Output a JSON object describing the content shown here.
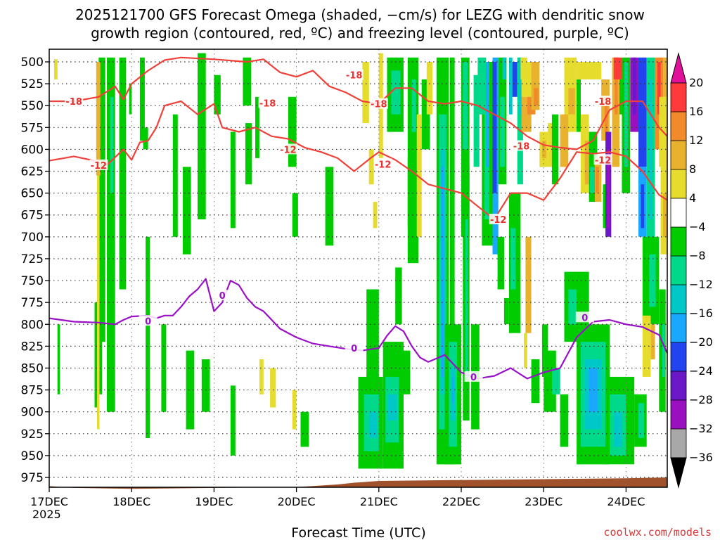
{
  "chart_data": {
    "type": "heatmap",
    "title_line1": "2025121700 GFS Forecast Omega (shaded, −cm/s) for LEZG with dendritic snow",
    "title_line2": "growth region (contoured, red, ºC) and freezing level (contoured, purple, ºC)",
    "xlabel": "Forecast Time (UTC)",
    "credit": "coolwx.com/models",
    "x_ticks": [
      "17DEC",
      "18DEC",
      "19DEC",
      "20DEC",
      "21DEC",
      "22DEC",
      "23DEC",
      "24DEC"
    ],
    "x_year": "2025",
    "x_range_days": [
      0,
      7.5
    ],
    "y_ticks": [
      500,
      525,
      550,
      575,
      600,
      625,
      650,
      675,
      700,
      725,
      750,
      775,
      800,
      825,
      850,
      875,
      900,
      925,
      950,
      975
    ],
    "y_range_hpa": [
      490,
      995
    ],
    "colorbar": {
      "labels": [
        "20",
        "16",
        "12",
        "8",
        "4",
        "−4",
        "−8",
        "−12",
        "−16",
        "−20",
        "−24",
        "−28",
        "−32",
        "−36"
      ],
      "colors": [
        "#ff3a3a",
        "#f08a2a",
        "#e8b22e",
        "#e6dc2e",
        "#ffffff",
        "#00cc00",
        "#00d98a",
        "#00c8c8",
        "#1aa8ff",
        "#2244ee",
        "#6a18c8",
        "#9a10c0",
        "#a8a8a8"
      ],
      "top_arrow_color": "#e0109a",
      "bottom_arrow_color": "#000000"
    },
    "contours_red_dgz": [
      {
        "label": "-18",
        "points": [
          [
            0,
            545
          ],
          [
            0.3,
            545
          ],
          [
            0.6,
            540
          ],
          [
            0.8,
            528
          ],
          [
            0.9,
            543
          ],
          [
            1.0,
            525
          ],
          [
            1.2,
            510
          ],
          [
            1.4,
            498
          ],
          [
            1.6,
            495
          ],
          [
            2.0,
            497
          ],
          [
            2.4,
            500
          ],
          [
            2.6,
            497
          ],
          [
            2.8,
            512
          ],
          [
            3.0,
            517
          ],
          [
            3.2,
            510
          ],
          [
            3.4,
            528
          ],
          [
            3.6,
            535
          ],
          [
            3.8,
            545
          ],
          [
            4.0,
            548
          ],
          [
            4.2,
            530
          ],
          [
            4.4,
            530
          ],
          [
            4.6,
            545
          ],
          [
            4.8,
            548
          ],
          [
            5.0,
            545
          ],
          [
            5.2,
            550
          ],
          [
            5.4,
            560
          ],
          [
            5.6,
            570
          ],
          [
            5.8,
            585
          ],
          [
            6.0,
            595
          ],
          [
            6.2,
            598
          ],
          [
            6.4,
            600
          ],
          [
            6.6,
            590
          ],
          [
            6.8,
            555
          ],
          [
            7.0,
            545
          ],
          [
            7.2,
            545
          ],
          [
            7.4,
            575
          ],
          [
            7.5,
            585
          ]
        ]
      },
      {
        "label": "-12",
        "points": [
          [
            0,
            613
          ],
          [
            0.3,
            608
          ],
          [
            0.5,
            612
          ],
          [
            0.7,
            618
          ],
          [
            0.9,
            600
          ],
          [
            1.0,
            612
          ],
          [
            1.1,
            592
          ],
          [
            1.2,
            590
          ],
          [
            1.3,
            575
          ],
          [
            1.4,
            550
          ],
          [
            1.6,
            545
          ],
          [
            1.8,
            560
          ],
          [
            2.0,
            548
          ],
          [
            2.1,
            575
          ],
          [
            2.3,
            580
          ],
          [
            2.5,
            575
          ],
          [
            2.7,
            585
          ],
          [
            2.9,
            588
          ],
          [
            3.1,
            598
          ],
          [
            3.3,
            603
          ],
          [
            3.5,
            610
          ],
          [
            3.7,
            625
          ],
          [
            3.9,
            610
          ],
          [
            4.0,
            603
          ],
          [
            4.2,
            612
          ],
          [
            4.4,
            625
          ],
          [
            4.6,
            640
          ],
          [
            4.8,
            645
          ],
          [
            5.0,
            650
          ],
          [
            5.2,
            665
          ],
          [
            5.4,
            680
          ],
          [
            5.6,
            650
          ],
          [
            5.8,
            650
          ],
          [
            6.0,
            658
          ],
          [
            6.2,
            633
          ],
          [
            6.4,
            603
          ],
          [
            6.6,
            605
          ],
          [
            6.8,
            603
          ],
          [
            7.0,
            608
          ],
          [
            7.2,
            625
          ],
          [
            7.4,
            652
          ],
          [
            7.5,
            658
          ]
        ]
      }
    ],
    "contour_purple_freezing": {
      "label": "0",
      "points": [
        [
          0,
          793
        ],
        [
          0.3,
          797
        ],
        [
          0.6,
          798
        ],
        [
          0.8,
          800
        ],
        [
          0.9,
          795
        ],
        [
          1.0,
          791
        ],
        [
          1.2,
          790
        ],
        [
          1.3,
          793
        ],
        [
          1.4,
          790
        ],
        [
          1.5,
          790
        ],
        [
          1.6,
          780
        ],
        [
          1.7,
          768
        ],
        [
          1.8,
          760
        ],
        [
          1.9,
          748
        ],
        [
          2.0,
          785
        ],
        [
          2.1,
          775
        ],
        [
          2.2,
          750
        ],
        [
          2.3,
          755
        ],
        [
          2.4,
          770
        ],
        [
          2.5,
          780
        ],
        [
          2.6,
          785
        ],
        [
          2.8,
          805
        ],
        [
          3.0,
          815
        ],
        [
          3.2,
          822
        ],
        [
          3.4,
          825
        ],
        [
          3.6,
          828
        ],
        [
          3.8,
          830
        ],
        [
          4.0,
          827
        ],
        [
          4.1,
          813
        ],
        [
          4.2,
          802
        ],
        [
          4.3,
          808
        ],
        [
          4.4,
          825
        ],
        [
          4.5,
          838
        ],
        [
          4.6,
          843
        ],
        [
          4.8,
          835
        ],
        [
          5.0,
          855
        ],
        [
          5.2,
          862
        ],
        [
          5.4,
          859
        ],
        [
          5.6,
          850
        ],
        [
          5.8,
          862
        ],
        [
          6.0,
          855
        ],
        [
          6.2,
          850
        ],
        [
          6.4,
          815
        ],
        [
          6.6,
          797
        ],
        [
          6.8,
          795
        ],
        [
          7.0,
          800
        ],
        [
          7.2,
          803
        ],
        [
          7.4,
          812
        ],
        [
          7.5,
          833
        ]
      ]
    },
    "terrain_color": "#a0522d",
    "terrain_surface": [
      [
        0,
        985
      ],
      [
        0.3,
        987
      ],
      [
        1.0,
        988
      ],
      [
        2.0,
        987
      ],
      [
        3.0,
        986
      ],
      [
        3.5,
        983
      ],
      [
        3.7,
        981
      ],
      [
        4.0,
        979
      ],
      [
        5.0,
        978
      ],
      [
        6.0,
        977
      ],
      [
        7.0,
        976
      ],
      [
        7.5,
        975
      ]
    ]
  }
}
